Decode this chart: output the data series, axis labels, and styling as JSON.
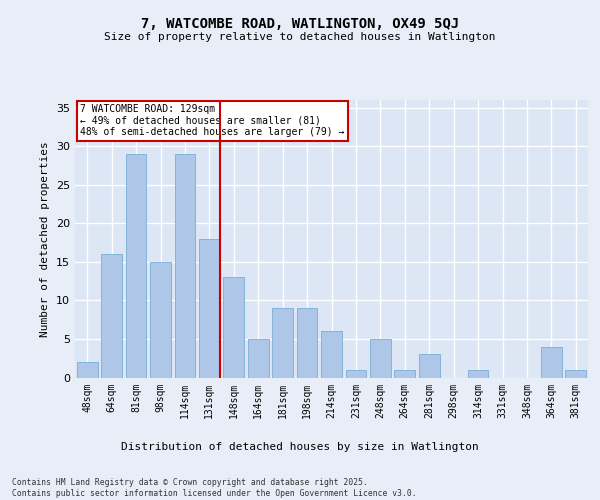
{
  "title": "7, WATCOMBE ROAD, WATLINGTON, OX49 5QJ",
  "subtitle": "Size of property relative to detached houses in Watlington",
  "xlabel": "Distribution of detached houses by size in Watlington",
  "ylabel": "Number of detached properties",
  "categories": [
    "48sqm",
    "64sqm",
    "81sqm",
    "98sqm",
    "114sqm",
    "131sqm",
    "148sqm",
    "164sqm",
    "181sqm",
    "198sqm",
    "214sqm",
    "231sqm",
    "248sqm",
    "264sqm",
    "281sqm",
    "298sqm",
    "314sqm",
    "331sqm",
    "348sqm",
    "364sqm",
    "381sqm"
  ],
  "values": [
    2,
    16,
    29,
    15,
    29,
    18,
    13,
    5,
    9,
    9,
    6,
    1,
    5,
    1,
    3,
    0,
    1,
    0,
    0,
    4,
    1
  ],
  "bar_color": "#aec6e8",
  "bar_edge_color": "#7aaed6",
  "background_color": "#dce6f5",
  "fig_background_color": "#e8eef8",
  "grid_color": "#ffffff",
  "vline_color": "#cc0000",
  "vline_index": 5,
  "annotation_text": "7 WATCOMBE ROAD: 129sqm\n← 49% of detached houses are smaller (81)\n48% of semi-detached houses are larger (79) →",
  "annotation_box_facecolor": "#ffffff",
  "annotation_box_edgecolor": "#cc0000",
  "footnote": "Contains HM Land Registry data © Crown copyright and database right 2025.\nContains public sector information licensed under the Open Government Licence v3.0.",
  "ylim": [
    0,
    36
  ],
  "yticks": [
    0,
    5,
    10,
    15,
    20,
    25,
    30,
    35
  ]
}
